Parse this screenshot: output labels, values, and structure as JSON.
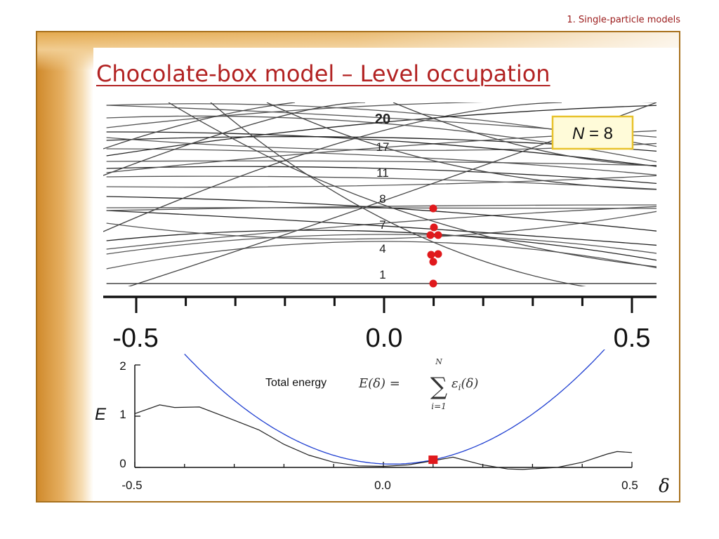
{
  "header": {
    "section": "1. Single-particle models"
  },
  "title": "Chocolate-box model – Level occupation",
  "colors": {
    "accent": "#b22222",
    "frame": "#a8711d",
    "occupied": "#e0191c",
    "parabola": "#1f3fd1",
    "badge_border": "#e8c22b",
    "badge_bg": "#fffbd9"
  },
  "badge": {
    "symbol": "N",
    "equals": " = 8"
  },
  "top_panel": {
    "level_labels": [
      "20",
      "17",
      "11",
      "8",
      "7",
      "4",
      "1"
    ],
    "x_ticks": [
      "-0.5",
      "0.0",
      "0.5"
    ]
  },
  "bottom_panel": {
    "annotation": "Total energy",
    "formula": {
      "lhs": "E(δ) =",
      "sum_top": "N",
      "sum_bottom": "i=1",
      "term": "ε",
      "term_sub": "i",
      "term_arg": "(δ)"
    },
    "y_label": "E",
    "x_label": "δ",
    "y_ticks": [
      "2",
      "1",
      "0"
    ],
    "x_ticks": [
      "-0.5",
      "0.0",
      "0.5"
    ]
  },
  "chart_data": [
    {
      "type": "line",
      "xlim": [
        -0.5,
        0.5
      ],
      "x_ticks": [
        "-0.5",
        "0.0",
        "0.5"
      ],
      "level_labels": [
        "1",
        "4",
        "7",
        "8",
        "11",
        "17",
        "20"
      ],
      "occupied_points": {
        "delta": 0.1,
        "count": 8
      }
    },
    {
      "type": "line",
      "xlim": [
        -0.5,
        0.5
      ],
      "ylim": [
        0,
        2
      ],
      "x_ticks": [
        "-0.5",
        "0.0",
        "0.5"
      ],
      "y_ticks": [
        "0",
        "1",
        "2"
      ],
      "xlabel": "δ",
      "ylabel": "E",
      "series": [
        {
          "x": [
            -0.5,
            -0.45,
            -0.42,
            -0.37,
            -0.3,
            -0.25,
            -0.2,
            -0.15,
            -0.1,
            -0.05,
            0.0,
            0.05,
            0.1,
            0.14,
            0.2,
            0.25,
            0.28,
            0.35,
            0.4,
            0.45,
            0.47,
            0.5
          ],
          "y": [
            1.05,
            1.22,
            1.17,
            1.18,
            0.92,
            0.73,
            0.45,
            0.24,
            0.1,
            0.03,
            0.02,
            0.05,
            0.13,
            0.2,
            0.05,
            -0.03,
            -0.04,
            0.0,
            0.1,
            0.26,
            0.31,
            0.29
          ]
        },
        {
          "x": [
            -0.4,
            -0.3,
            -0.2,
            -0.1,
            0.0,
            0.1,
            0.2,
            0.3,
            0.4,
            0.45
          ],
          "y": [
            2.25,
            1.3,
            0.63,
            0.2,
            0.02,
            0.15,
            0.55,
            1.1,
            1.85,
            2.3
          ]
        }
      ],
      "highlight_point": {
        "x": 0.1,
        "y": 0.15
      }
    }
  ]
}
